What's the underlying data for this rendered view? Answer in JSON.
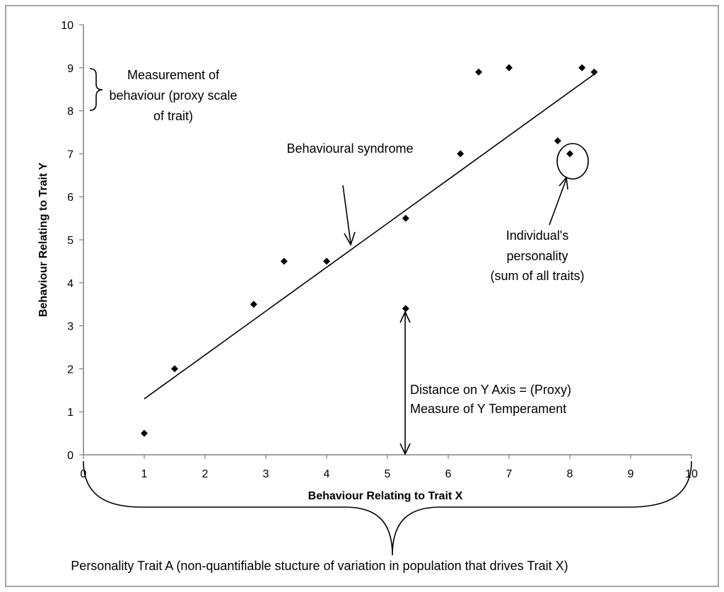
{
  "chart_data": {
    "type": "scatter",
    "title": "",
    "xlabel": "Behaviour Relating to Trait X",
    "ylabel": "Behaviour Relating to Trait Y",
    "xlim": [
      0,
      10
    ],
    "ylim": [
      0,
      10
    ],
    "x_ticks": [
      "0",
      "1",
      "2",
      "3",
      "4",
      "5",
      "6",
      "7",
      "8",
      "9",
      "10"
    ],
    "y_ticks": [
      "0",
      "1",
      "2",
      "3",
      "4",
      "5",
      "6",
      "7",
      "8",
      "9",
      "10"
    ],
    "grid": false,
    "legend": "none",
    "points": [
      {
        "x": 1.0,
        "y": 0.5
      },
      {
        "x": 1.5,
        "y": 2.0
      },
      {
        "x": 2.8,
        "y": 3.5
      },
      {
        "x": 3.3,
        "y": 4.5
      },
      {
        "x": 4.0,
        "y": 4.5
      },
      {
        "x": 5.3,
        "y": 3.4
      },
      {
        "x": 5.3,
        "y": 5.5
      },
      {
        "x": 6.2,
        "y": 7.0
      },
      {
        "x": 6.5,
        "y": 8.9
      },
      {
        "x": 7.0,
        "y": 9.0
      },
      {
        "x": 7.8,
        "y": 7.3
      },
      {
        "x": 8.0,
        "y": 7.0
      },
      {
        "x": 8.2,
        "y": 9.0
      },
      {
        "x": 8.4,
        "y": 8.9
      }
    ],
    "trendline": {
      "x": [
        1.0,
        8.4
      ],
      "y": [
        1.3,
        8.85
      ]
    },
    "annotations": {
      "measurement": [
        "Measurement of",
        "behaviour (proxy scale",
        "of trait)"
      ],
      "syndrome": "Behavioural syndrome",
      "individual": [
        "Individual's",
        "personality",
        "(sum of all traits)"
      ],
      "distance": [
        "Distance on Y Axis = (Proxy)",
        "Measure of Y Temperament"
      ],
      "personality_trait": "Personality Trait A (non-quantifiable stucture of variation in population that drives Trait X)"
    }
  }
}
